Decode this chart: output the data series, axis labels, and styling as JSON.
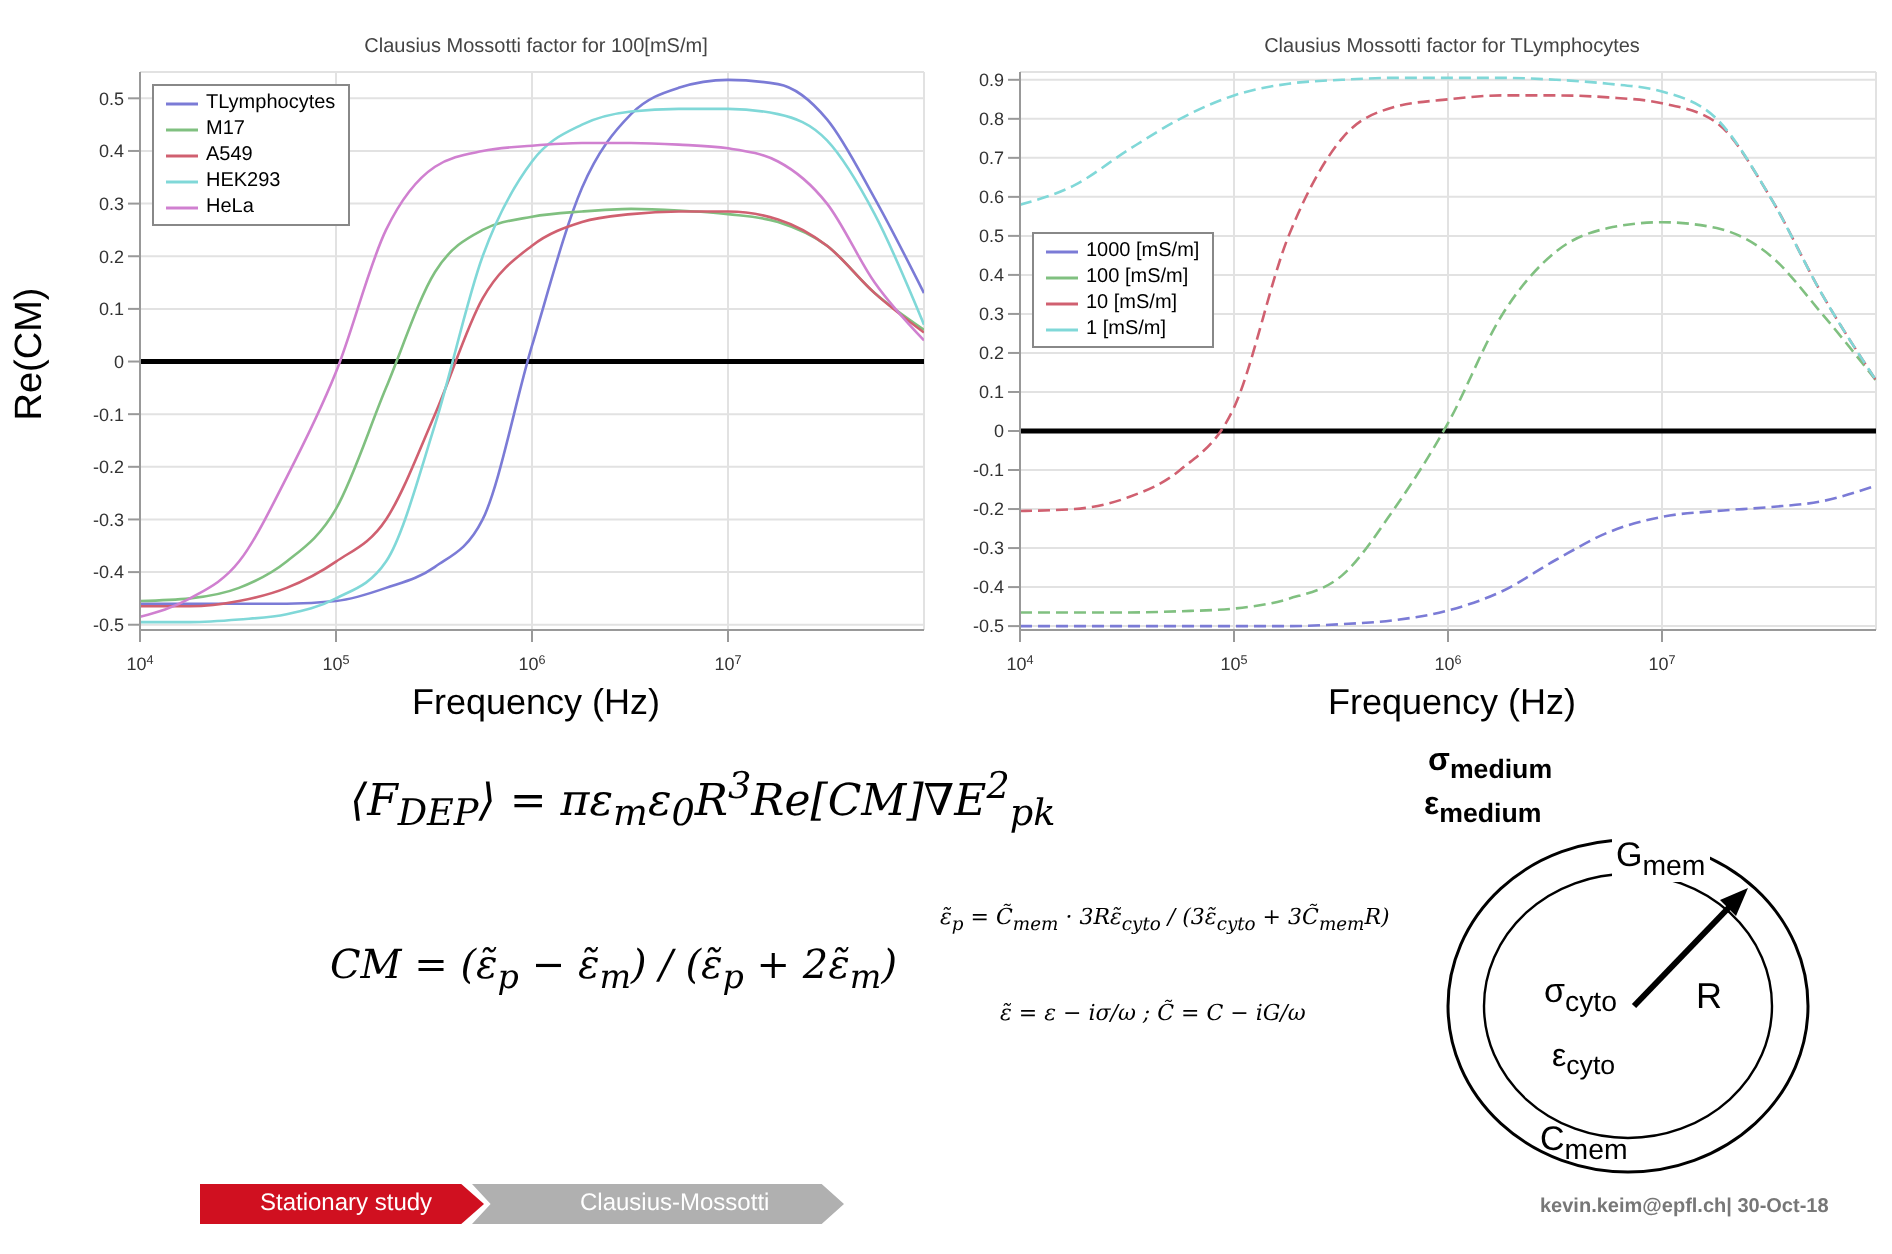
{
  "chart_data": [
    {
      "type": "line",
      "title": "Clausius Mossotti factor for 100[mS/m]",
      "xlabel": "Frequency (Hz)",
      "ylabel": "Re(CM)",
      "log": "x",
      "grid": true,
      "legend": "top left",
      "x": [
        10000,
        18000,
        32000,
        56000,
        100000,
        180000,
        320000,
        560000,
        1000000,
        1800000,
        3200000,
        5600000,
        10000000,
        18000000,
        32000000,
        56000000,
        100000000
      ],
      "xlim": [
        10000,
        100000000
      ],
      "xticks": [
        {
          "value": 10000,
          "label": "10$^{4}$"
        },
        {
          "value": 100000,
          "label": "10$^{5}$"
        },
        {
          "value": 1000000,
          "label": "10$^{6}$"
        },
        {
          "value": 10000000,
          "label": "10$^{7}$"
        }
      ],
      "ylim": [
        -0.51,
        0.55
      ],
      "yticks": [
        -0.5,
        -0.4,
        -0.3,
        -0.2,
        -0.1,
        0,
        0.1,
        0.2,
        0.3,
        0.4,
        0.5
      ],
      "ref_lines": [
        {
          "axis": "y",
          "value": 0,
          "color": "#000000"
        }
      ],
      "series": [
        {
          "name": "TLymphocytes",
          "color": "#7b7bd6",
          "values": [
            -0.46,
            -0.46,
            -0.46,
            -0.46,
            -0.455,
            -0.43,
            -0.39,
            -0.3,
            0.03,
            0.33,
            0.47,
            0.52,
            0.535,
            0.527,
            0.46,
            0.31,
            0.13
          ]
        },
        {
          "name": "M17",
          "color": "#80c080",
          "values": [
            -0.455,
            -0.45,
            -0.43,
            -0.38,
            -0.28,
            -0.05,
            0.17,
            0.25,
            0.275,
            0.285,
            0.29,
            0.287,
            0.28,
            0.265,
            0.22,
            0.13,
            0.06
          ]
        },
        {
          "name": "A549",
          "color": "#d06070",
          "values": [
            -0.465,
            -0.465,
            -0.455,
            -0.43,
            -0.38,
            -0.3,
            -0.1,
            0.12,
            0.22,
            0.265,
            0.28,
            0.285,
            0.285,
            0.27,
            0.22,
            0.13,
            0.055
          ]
        },
        {
          "name": "HEK293",
          "color": "#80d8d8",
          "values": [
            -0.495,
            -0.495,
            -0.49,
            -0.48,
            -0.45,
            -0.38,
            -0.12,
            0.2,
            0.38,
            0.45,
            0.475,
            0.48,
            0.48,
            0.47,
            0.42,
            0.28,
            0.07
          ]
        },
        {
          "name": "HeLa",
          "color": "#d080d0",
          "values": [
            -0.485,
            -0.45,
            -0.38,
            -0.22,
            -0.02,
            0.25,
            0.37,
            0.4,
            0.41,
            0.415,
            0.415,
            0.412,
            0.405,
            0.38,
            0.3,
            0.15,
            0.04
          ]
        }
      ]
    },
    {
      "type": "line",
      "title": "Clausius Mossotti factor for TLymphocytes",
      "xlabel": "Frequency (Hz)",
      "log": "x",
      "grid": true,
      "legend": "left",
      "line_style": "dashed",
      "x": [
        10000,
        18000,
        32000,
        56000,
        100000,
        180000,
        320000,
        560000,
        1000000,
        1800000,
        3200000,
        5600000,
        10000000,
        18000000,
        32000000,
        56000000,
        100000000
      ],
      "xlim": [
        10000,
        100000000
      ],
      "xticks": [
        {
          "value": 10000,
          "label": "10$^{4}$"
        },
        {
          "value": 100000,
          "label": "10$^{5}$"
        },
        {
          "value": 1000000,
          "label": "10$^{6}$"
        },
        {
          "value": 10000000,
          "label": "10$^{7}$"
        }
      ],
      "ylim": [
        -0.51,
        0.92
      ],
      "yticks": [
        -0.5,
        -0.4,
        -0.3,
        -0.2,
        -0.1,
        0,
        0.1,
        0.2,
        0.3,
        0.4,
        0.5,
        0.6,
        0.7,
        0.8,
        0.9
      ],
      "ref_lines": [
        {
          "axis": "y",
          "value": 0,
          "color": "#000000"
        }
      ],
      "series": [
        {
          "name": "1000 [mS/m]",
          "color": "#7b7bd6",
          "values": [
            -0.5,
            -0.5,
            -0.5,
            -0.5,
            -0.5,
            -0.5,
            -0.495,
            -0.485,
            -0.46,
            -0.41,
            -0.33,
            -0.26,
            -0.22,
            -0.205,
            -0.195,
            -0.18,
            -0.14
          ]
        },
        {
          "name": "100 [mS/m]",
          "color": "#80c080",
          "values": [
            -0.465,
            -0.465,
            -0.465,
            -0.462,
            -0.455,
            -0.43,
            -0.37,
            -0.2,
            0.02,
            0.3,
            0.46,
            0.52,
            0.535,
            0.52,
            0.45,
            0.3,
            0.13
          ]
        },
        {
          "name": "10 [mS/m]",
          "color": "#d06070",
          "values": [
            -0.205,
            -0.2,
            -0.17,
            -0.1,
            0.06,
            0.5,
            0.75,
            0.83,
            0.85,
            0.86,
            0.86,
            0.855,
            0.84,
            0.79,
            0.6,
            0.35,
            0.13
          ]
        },
        {
          "name": "1 [mS/m]",
          "color": "#80d8d8",
          "values": [
            0.58,
            0.63,
            0.72,
            0.8,
            0.86,
            0.89,
            0.9,
            0.905,
            0.905,
            0.905,
            0.9,
            0.89,
            0.87,
            0.8,
            0.6,
            0.35,
            0.13
          ]
        }
      ]
    },
    {
      "type": "other",
      "annotations": [
        "⟨F$_{DEP}$⟩ = πε$_{m}$ε$_{0}$R$^{3}$Re[CM]∇E$^{2}$$_{pk}$",
        "CM = (ε̃$_{p}$ − ε̃$_{m}$) / (ε̃$_{p}$ + 2ε̃$_{m}$)",
        "ε̃$_{p}$ = C̃$_{mem}$ · 3Rε̃$_{cyto}$ / (3ε̃$_{cyto}$ + 3C̃$_{mem}$R)",
        "ε̃ = ε − iσ/ω ; C̃ = C − iG/ω",
        "σ$_{medium}$",
        "ε$_{medium}$",
        "G$_{mem}$",
        "σ$_{cyto}$",
        "R",
        "ε$_{cyto}$",
        "C$_{mem}$",
        "Stationary study",
        "Clausius-Mossotti",
        "kevin.keim@epfl.ch| 30-Oct-18"
      ]
    }
  ]
}
